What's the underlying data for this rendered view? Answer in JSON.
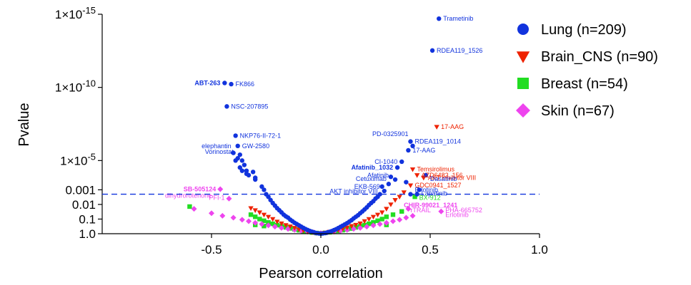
{
  "chart_data": {
    "type": "scatter",
    "xlabel": "Pearson correlation",
    "ylabel": "Pvalue",
    "y_scale": "log-reversed",
    "xlim": [
      -1.0,
      1.0
    ],
    "ylim_log10": [
      0,
      -15
    ],
    "x_ticks": [
      "-0.5",
      "0.0",
      "0.5",
      "1.0"
    ],
    "x_tick_values": [
      -0.5,
      0.0,
      0.5,
      1.0
    ],
    "y_ticks": [
      {
        "label": "1.0",
        "value": 1.0
      },
      {
        "label": "0.1",
        "value": 0.1
      },
      {
        "label": "0.01",
        "value": 0.01
      },
      {
        "label": "0.001",
        "value": 0.001
      }
    ],
    "y_ticks_sci": [
      {
        "mant": "1×10",
        "exp": "-5",
        "value": 1e-05
      },
      {
        "mant": "1×10",
        "exp": "-10",
        "value": 1e-10
      },
      {
        "mant": "1×10",
        "exp": "-15",
        "value": 1e-15
      }
    ],
    "threshold_pvalue": 0.002,
    "legend_position": "right",
    "series": [
      {
        "name": "Lung (n=209)",
        "color": "#1133dd",
        "marker": "circle",
        "points": [
          [
            0.54,
            2e-15
          ],
          [
            0.51,
            3e-13
          ],
          [
            -0.41,
            6e-11
          ],
          [
            -0.44,
            5e-11
          ],
          [
            -0.43,
            2e-09
          ],
          [
            -0.39,
            2e-07
          ],
          [
            -0.38,
            1e-06
          ],
          [
            0.42,
            1e-06
          ],
          [
            0.41,
            5e-07
          ],
          [
            0.4,
            2e-06
          ],
          [
            0.37,
            1.2e-05
          ],
          [
            0.35,
            3e-05
          ],
          [
            0.48,
            0.0001
          ],
          [
            0.32,
            0.00013
          ],
          [
            0.28,
            0.0006
          ],
          [
            -0.36,
            5e-05
          ],
          [
            -0.35,
            2e-05
          ],
          [
            -0.34,
            8e-05
          ],
          [
            -0.33,
            0.0001
          ],
          [
            -0.3,
            0.00015
          ],
          [
            -0.4,
            3e-06
          ],
          [
            -0.37,
            4e-06
          ],
          [
            -0.38,
            7e-06
          ],
          [
            -0.36,
            1e-05
          ],
          [
            -0.39,
            1e-05
          ],
          [
            -0.37,
            3e-05
          ],
          [
            -0.34,
            5e-05
          ],
          [
            -0.31,
            6e-05
          ],
          [
            -0.3,
            0.0002
          ],
          [
            -0.27,
            0.0006
          ],
          [
            -0.26,
            0.001
          ],
          [
            -0.25,
            0.002
          ],
          [
            -0.24,
            0.003
          ],
          [
            -0.23,
            0.005
          ],
          [
            -0.22,
            0.008
          ],
          [
            -0.21,
            0.012
          ],
          [
            -0.2,
            0.018
          ],
          [
            -0.19,
            0.025
          ],
          [
            -0.18,
            0.035
          ],
          [
            -0.17,
            0.05
          ],
          [
            -0.16,
            0.065
          ],
          [
            -0.15,
            0.08
          ],
          [
            -0.14,
            0.11
          ],
          [
            -0.13,
            0.14
          ],
          [
            -0.12,
            0.18
          ],
          [
            -0.11,
            0.22
          ],
          [
            -0.1,
            0.27
          ],
          [
            -0.09,
            0.33
          ],
          [
            -0.08,
            0.4
          ],
          [
            -0.07,
            0.48
          ],
          [
            -0.06,
            0.56
          ],
          [
            -0.05,
            0.65
          ],
          [
            -0.04,
            0.73
          ],
          [
            -0.03,
            0.82
          ],
          [
            -0.02,
            0.9
          ],
          [
            -0.01,
            0.95
          ],
          [
            0.0,
            1.0
          ],
          [
            0.01,
            0.95
          ],
          [
            0.02,
            0.9
          ],
          [
            0.03,
            0.82
          ],
          [
            0.04,
            0.74
          ],
          [
            0.05,
            0.66
          ],
          [
            0.06,
            0.57
          ],
          [
            0.07,
            0.49
          ],
          [
            0.08,
            0.41
          ],
          [
            0.09,
            0.34
          ],
          [
            0.1,
            0.28
          ],
          [
            0.11,
            0.23
          ],
          [
            0.12,
            0.19
          ],
          [
            0.13,
            0.15
          ],
          [
            0.14,
            0.12
          ],
          [
            0.15,
            0.09
          ],
          [
            0.16,
            0.07
          ],
          [
            0.17,
            0.055
          ],
          [
            0.18,
            0.04
          ],
          [
            0.19,
            0.03
          ],
          [
            0.2,
            0.022
          ],
          [
            0.21,
            0.016
          ],
          [
            0.22,
            0.011
          ],
          [
            0.23,
            0.008
          ],
          [
            0.24,
            0.006
          ],
          [
            0.25,
            0.004
          ],
          [
            0.26,
            0.003
          ],
          [
            0.27,
            0.002
          ],
          [
            0.29,
            0.0012
          ],
          [
            0.31,
            0.0004
          ],
          [
            0.34,
            0.0002
          ],
          [
            0.39,
            0.0003
          ],
          [
            0.41,
            0.002
          ],
          [
            0.44,
            0.002
          ],
          [
            0.45,
            0.001
          ]
        ]
      },
      {
        "name": "Brain_CNS (n=90)",
        "color": "#ee2200",
        "marker": "triangle-down",
        "points": [
          [
            0.53,
            5e-08
          ],
          [
            0.42,
            4e-05
          ],
          [
            0.44,
            0.0001
          ],
          [
            0.47,
            0.00015
          ],
          [
            0.41,
            0.0005
          ],
          [
            0.38,
            0.0015
          ],
          [
            0.36,
            0.003
          ],
          [
            0.34,
            0.005
          ],
          [
            0.32,
            0.01
          ],
          [
            0.3,
            0.02
          ],
          [
            0.28,
            0.035
          ],
          [
            0.26,
            0.05
          ],
          [
            0.24,
            0.07
          ],
          [
            0.22,
            0.1
          ],
          [
            0.2,
            0.14
          ],
          [
            0.18,
            0.2
          ],
          [
            0.16,
            0.25
          ],
          [
            0.14,
            0.3
          ],
          [
            0.12,
            0.38
          ],
          [
            0.1,
            0.45
          ],
          [
            0.08,
            0.55
          ],
          [
            0.06,
            0.65
          ],
          [
            0.04,
            0.75
          ],
          [
            0.02,
            0.85
          ],
          [
            0.0,
            0.95
          ],
          [
            -0.02,
            0.9
          ],
          [
            -0.04,
            0.8
          ],
          [
            -0.06,
            0.7
          ],
          [
            -0.08,
            0.6
          ],
          [
            -0.1,
            0.5
          ],
          [
            -0.12,
            0.4
          ],
          [
            -0.14,
            0.32
          ],
          [
            -0.16,
            0.26
          ],
          [
            -0.18,
            0.2
          ],
          [
            -0.2,
            0.15
          ],
          [
            -0.22,
            0.1
          ],
          [
            -0.24,
            0.07
          ],
          [
            -0.26,
            0.05
          ],
          [
            -0.28,
            0.035
          ],
          [
            -0.3,
            0.025
          ],
          [
            -0.32,
            0.018
          ]
        ]
      },
      {
        "name": "Breast (n=54)",
        "color": "#22dd22",
        "marker": "square",
        "points": [
          [
            -0.6,
            0.014
          ],
          [
            0.43,
            0.003
          ],
          [
            0.37,
            0.03
          ],
          [
            0.33,
            0.05
          ],
          [
            0.3,
            0.07
          ],
          [
            0.28,
            0.1
          ],
          [
            0.26,
            0.13
          ],
          [
            0.24,
            0.17
          ],
          [
            0.22,
            0.21
          ],
          [
            0.2,
            0.26
          ],
          [
            0.18,
            0.31
          ],
          [
            0.16,
            0.37
          ],
          [
            0.14,
            0.44
          ],
          [
            0.12,
            0.5
          ],
          [
            0.1,
            0.57
          ],
          [
            0.08,
            0.64
          ],
          [
            0.06,
            0.72
          ],
          [
            0.04,
            0.8
          ],
          [
            0.02,
            0.88
          ],
          [
            0.0,
            0.95
          ],
          [
            -0.02,
            0.9
          ],
          [
            -0.04,
            0.82
          ],
          [
            -0.06,
            0.74
          ],
          [
            -0.08,
            0.66
          ],
          [
            -0.1,
            0.58
          ],
          [
            -0.12,
            0.5
          ],
          [
            -0.14,
            0.43
          ],
          [
            -0.16,
            0.37
          ],
          [
            -0.18,
            0.31
          ],
          [
            -0.2,
            0.26
          ],
          [
            -0.22,
            0.21
          ],
          [
            -0.24,
            0.17
          ],
          [
            -0.26,
            0.13
          ],
          [
            -0.28,
            0.1
          ],
          [
            -0.3,
            0.07
          ],
          [
            -0.32,
            0.05
          ],
          [
            -0.3,
            0.25
          ],
          [
            -0.26,
            0.3
          ],
          [
            0.3,
            0.25
          ]
        ]
      },
      {
        "name": "Skin (n=67)",
        "color": "#ee44ee",
        "marker": "diamond",
        "points": [
          [
            -0.46,
            0.0009
          ],
          [
            -0.42,
            0.004
          ],
          [
            0.4,
            0.02
          ],
          [
            0.55,
            0.03
          ],
          [
            -0.58,
            0.02
          ],
          [
            -0.5,
            0.04
          ],
          [
            -0.45,
            0.06
          ],
          [
            -0.4,
            0.08
          ],
          [
            -0.36,
            0.11
          ],
          [
            -0.33,
            0.14
          ],
          [
            -0.3,
            0.18
          ],
          [
            -0.27,
            0.22
          ],
          [
            -0.24,
            0.27
          ],
          [
            -0.21,
            0.33
          ],
          [
            -0.18,
            0.4
          ],
          [
            -0.15,
            0.47
          ],
          [
            -0.12,
            0.55
          ],
          [
            -0.09,
            0.63
          ],
          [
            -0.06,
            0.72
          ],
          [
            -0.03,
            0.82
          ],
          [
            0.0,
            0.92
          ],
          [
            0.03,
            0.82
          ],
          [
            0.06,
            0.72
          ],
          [
            0.09,
            0.63
          ],
          [
            0.12,
            0.55
          ],
          [
            0.15,
            0.47
          ],
          [
            0.18,
            0.4
          ],
          [
            0.21,
            0.33
          ],
          [
            0.24,
            0.27
          ],
          [
            0.27,
            0.22
          ],
          [
            0.3,
            0.18
          ],
          [
            0.33,
            0.14
          ],
          [
            0.36,
            0.11
          ],
          [
            0.39,
            0.08
          ],
          [
            0.42,
            0.06
          ]
        ]
      }
    ],
    "annotations": [
      {
        "text": "Trametinib",
        "x": 0.54,
        "p": 2e-15,
        "series": 0,
        "bold": false
      },
      {
        "text": "RDEA119_1526",
        "x": 0.51,
        "p": 3e-13,
        "series": 0,
        "bold": false
      },
      {
        "text": "ABT-263",
        "x": -0.44,
        "p": 5e-11,
        "series": 0,
        "bold": true,
        "side": "left"
      },
      {
        "text": "FK866",
        "x": -0.41,
        "p": 6e-11,
        "series": 0,
        "bold": false
      },
      {
        "text": "NSC-207895",
        "x": -0.43,
        "p": 2e-09,
        "series": 0,
        "bold": false
      },
      {
        "text": "NKP76-II-72-1",
        "x": -0.39,
        "p": 2e-07,
        "series": 0,
        "bold": false
      },
      {
        "text": "elephantin",
        "x": -0.39,
        "p": 1e-06,
        "series": 0,
        "bold": false,
        "side": "left"
      },
      {
        "text": "GW-2580",
        "x": -0.38,
        "p": 1e-06,
        "series": 0,
        "bold": false
      },
      {
        "text": "Vorinostat",
        "x": -0.38,
        "p": 2.5e-06,
        "series": 0,
        "bold": false,
        "side": "left"
      },
      {
        "text": "PD-0325901",
        "x": 0.42,
        "p": 1.5e-07,
        "series": 0,
        "bold": false,
        "side": "left"
      },
      {
        "text": "17-AAG",
        "x": 0.53,
        "p": 5e-08,
        "series": 1,
        "bold": false
      },
      {
        "text": "RDEA119_1014",
        "x": 0.41,
        "p": 5e-07,
        "series": 0,
        "bold": false
      },
      {
        "text": "17-AAG",
        "x": 0.4,
        "p": 2e-06,
        "series": 0,
        "bold": false
      },
      {
        "text": "CI-1040",
        "x": 0.37,
        "p": 1.2e-05,
        "series": 0,
        "bold": false,
        "side": "left"
      },
      {
        "text": "Temsirolimus",
        "x": 0.42,
        "p": 4e-05,
        "series": 1,
        "bold": false
      },
      {
        "text": "Afatinib_1032",
        "x": 0.35,
        "p": 3e-05,
        "series": 0,
        "bold": true,
        "side": "left"
      },
      {
        "text": "AZD6482_156",
        "x": 0.44,
        "p": 0.0001,
        "series": 1,
        "bold": false
      },
      {
        "text": "Afatinib",
        "x": 0.33,
        "p": 0.0001,
        "series": 0,
        "bold": false,
        "side": "left"
      },
      {
        "text": "AKT inhibitor VIII",
        "x": 0.47,
        "p": 0.00015,
        "series": 1,
        "bold": false
      },
      {
        "text": "Cetuximab",
        "x": 0.32,
        "p": 0.00018,
        "series": 0,
        "bold": false,
        "side": "left"
      },
      {
        "text": "Dasatinib",
        "x": 0.48,
        "p": 0.00018,
        "series": 0,
        "bold": false
      },
      {
        "text": "GDC0941_1527",
        "x": 0.41,
        "p": 0.0005,
        "series": 1,
        "bold": false
      },
      {
        "text": "EKB-569",
        "x": 0.29,
        "p": 0.0006,
        "series": 0,
        "bold": false,
        "side": "left"
      },
      {
        "text": "Erlotinib",
        "x": 0.41,
        "p": 0.001,
        "series": 0,
        "bold": false
      },
      {
        "text": "AKT inhibitor VIII",
        "x": 0.28,
        "p": 0.0013,
        "series": 0,
        "bold": false,
        "side": "left"
      },
      {
        "text": "Lapatinib",
        "x": 0.44,
        "p": 0.0018,
        "series": 0,
        "bold": false
      },
      {
        "text": "BX-912",
        "x": 0.43,
        "p": 0.0035,
        "series": 2,
        "bold": false
      },
      {
        "text": "SB-505124",
        "x": -0.46,
        "p": 0.0009,
        "series": 3,
        "bold": true,
        "side": "left"
      },
      {
        "text": "dihydrorotenone",
        "x": -0.48,
        "p": 0.0025,
        "series": 3,
        "bold": false,
        "side": "left"
      },
      {
        "text": "PFI-1",
        "x": -0.42,
        "p": 0.0035,
        "series": 3,
        "bold": false,
        "side": "left"
      },
      {
        "text": "CHIR-99021_1241",
        "x": 0.36,
        "p": 0.011,
        "series": 3,
        "bold": true
      },
      {
        "text": "rTRAIL",
        "x": 0.39,
        "p": 0.025,
        "series": 3,
        "bold": false
      },
      {
        "text": "PHA-665752",
        "x": 0.55,
        "p": 0.025,
        "series": 3,
        "bold": false
      },
      {
        "text": "Erlotinib",
        "x": 0.55,
        "p": 0.05,
        "series": 3,
        "bold": false
      }
    ]
  }
}
